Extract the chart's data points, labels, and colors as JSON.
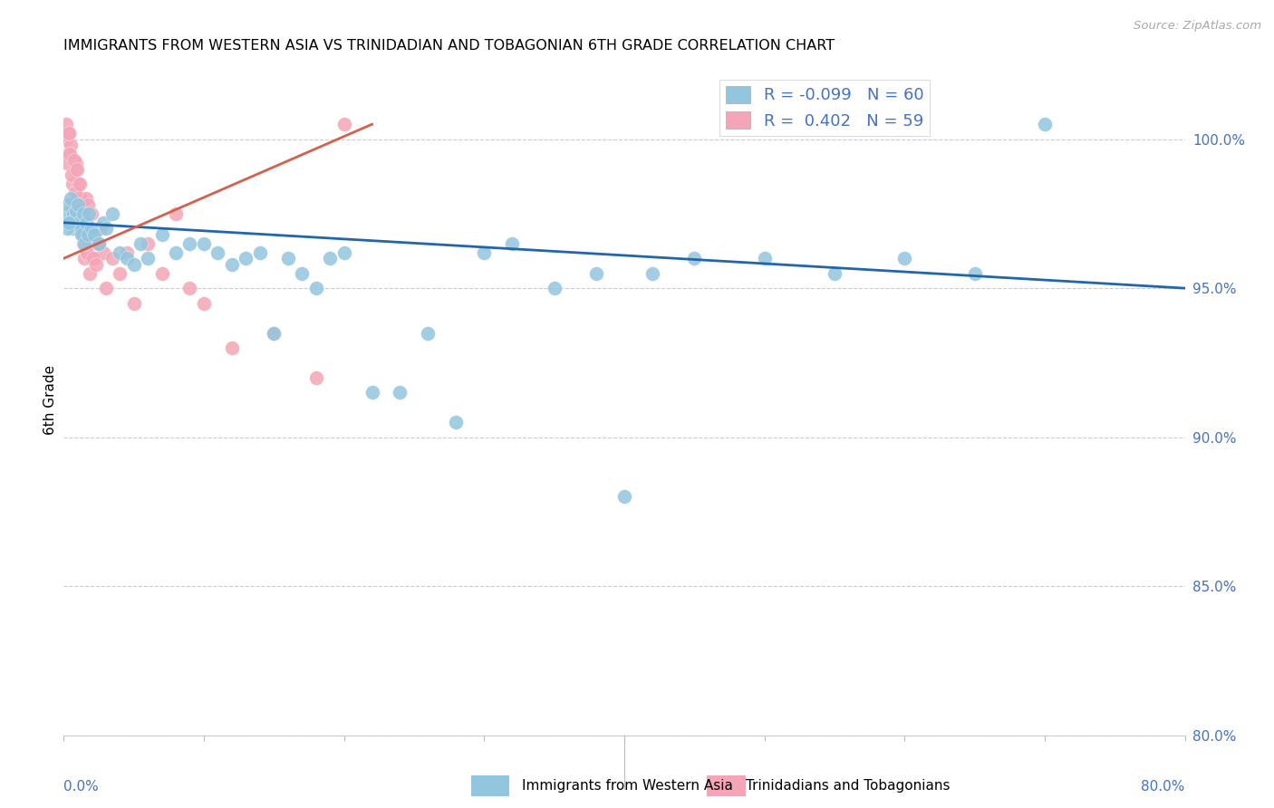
{
  "title": "IMMIGRANTS FROM WESTERN ASIA VS TRINIDADIAN AND TOBAGONIAN 6TH GRADE CORRELATION CHART",
  "source": "Source: ZipAtlas.com",
  "ylabel": "6th Grade",
  "ylabel_right_ticks": [
    100.0,
    95.0,
    90.0,
    85.0,
    80.0
  ],
  "xmin": 0.0,
  "xmax": 80.0,
  "ymin": 80.0,
  "ymax": 102.5,
  "blue_color": "#92c5de",
  "pink_color": "#f4a6b8",
  "blue_line_color": "#2166ac",
  "pink_line_color": "#d6604d",
  "R1": -0.099,
  "N1": 60,
  "R2": 0.402,
  "N2": 59,
  "blue_x": [
    0.2,
    0.3,
    0.4,
    0.5,
    0.6,
    0.7,
    0.8,
    0.9,
    1.0,
    1.1,
    1.2,
    1.3,
    1.4,
    1.5,
    1.6,
    1.7,
    1.8,
    2.0,
    2.2,
    2.5,
    2.8,
    3.0,
    3.5,
    4.0,
    4.5,
    5.0,
    5.5,
    6.0,
    7.0,
    8.0,
    9.0,
    10.0,
    11.0,
    12.0,
    13.0,
    14.0,
    15.0,
    16.0,
    17.0,
    18.0,
    19.0,
    20.0,
    22.0,
    24.0,
    26.0,
    28.0,
    30.0,
    32.0,
    35.0,
    38.0,
    40.0,
    42.0,
    45.0,
    50.0,
    55.0,
    60.0,
    65.0,
    70.0,
    0.25,
    0.35
  ],
  "blue_y": [
    97.5,
    97.8,
    97.2,
    98.0,
    97.0,
    97.5,
    97.3,
    97.6,
    97.8,
    97.2,
    97.0,
    96.8,
    97.5,
    96.5,
    97.2,
    96.8,
    97.5,
    97.0,
    96.8,
    96.5,
    97.2,
    97.0,
    97.5,
    96.2,
    96.0,
    95.8,
    96.5,
    96.0,
    96.8,
    96.2,
    96.5,
    96.5,
    96.2,
    95.8,
    96.0,
    96.2,
    93.5,
    96.0,
    95.5,
    95.0,
    96.0,
    96.2,
    91.5,
    91.5,
    93.5,
    90.5,
    96.2,
    96.5,
    95.0,
    95.5,
    88.0,
    95.5,
    96.0,
    96.0,
    95.5,
    96.0,
    95.5,
    100.5,
    97.0,
    97.2
  ],
  "pink_x": [
    0.2,
    0.3,
    0.4,
    0.5,
    0.6,
    0.7,
    0.8,
    0.9,
    1.0,
    1.1,
    1.2,
    1.3,
    1.4,
    1.5,
    1.6,
    1.7,
    1.8,
    1.9,
    2.0,
    2.2,
    2.4,
    2.6,
    2.8,
    3.0,
    3.5,
    4.0,
    4.5,
    5.0,
    6.0,
    7.0,
    8.0,
    9.0,
    10.0,
    12.0,
    15.0,
    18.0,
    20.0,
    0.15,
    0.25,
    0.35,
    0.45,
    0.55,
    0.65,
    0.75,
    0.85,
    0.95,
    1.05,
    1.15,
    1.25,
    1.35,
    1.45,
    1.55,
    1.65,
    1.75,
    1.85,
    1.95,
    2.1,
    2.3,
    2.5
  ],
  "pink_y": [
    100.0,
    99.5,
    100.2,
    99.8,
    98.5,
    97.5,
    99.0,
    99.2,
    98.5,
    97.2,
    98.0,
    97.5,
    96.5,
    96.0,
    98.0,
    97.0,
    96.5,
    96.0,
    97.5,
    96.0,
    96.5,
    97.0,
    96.2,
    95.0,
    96.0,
    95.5,
    96.2,
    94.5,
    96.5,
    95.5,
    97.5,
    95.0,
    94.5,
    93.0,
    93.5,
    92.0,
    100.5,
    100.5,
    99.2,
    100.2,
    99.5,
    98.8,
    97.8,
    99.3,
    98.2,
    99.0,
    97.5,
    98.5,
    97.0,
    96.8,
    97.5,
    97.2,
    96.2,
    97.8,
    95.5,
    96.8,
    96.0,
    95.8,
    96.5
  ],
  "blue_trend_x": [
    0.0,
    80.0
  ],
  "blue_trend_y": [
    97.2,
    95.0
  ],
  "pink_trend_x": [
    0.0,
    22.0
  ],
  "pink_trend_y": [
    96.0,
    100.5
  ]
}
